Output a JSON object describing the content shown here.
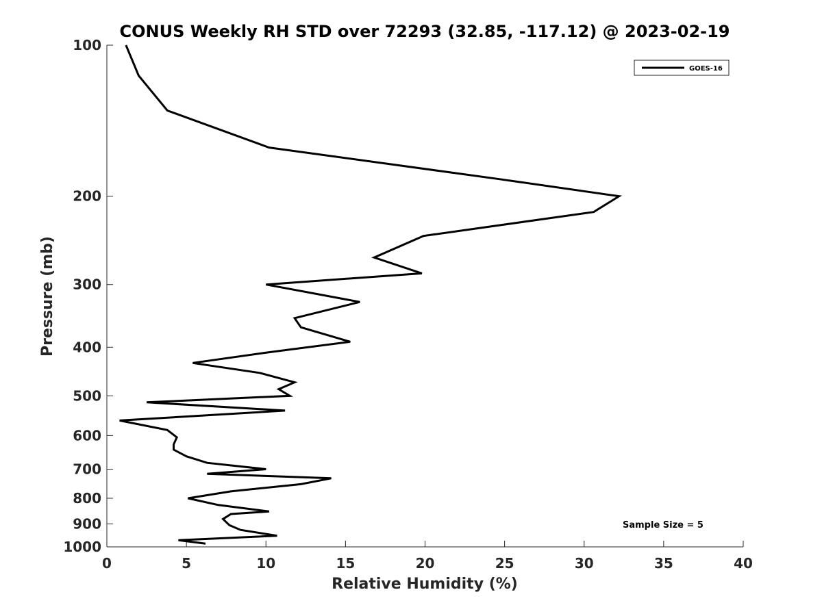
{
  "chart_data": {
    "type": "line",
    "title": "CONUS Weekly RH STD over 72293 (32.85, -117.12) @ 2023-02-19",
    "xlabel": "Relative Humidity (%)",
    "ylabel": "Pressure (mb)",
    "xlim": [
      0,
      40
    ],
    "ylim": [
      100,
      1000
    ],
    "yscale": "log",
    "y_reversed": true,
    "grid": false,
    "legend_position": "top-right",
    "x_ticks": [
      0,
      5,
      10,
      15,
      20,
      25,
      30,
      35,
      40
    ],
    "y_ticks": [
      100,
      200,
      300,
      400,
      500,
      600,
      700,
      800,
      900,
      1000
    ],
    "series": [
      {
        "name": "GOES-16",
        "color": "#000000",
        "rh": [
          1.2,
          2.0,
          3.8,
          10.2,
          24.7,
          32.2,
          30.6,
          19.9,
          16.8,
          19.8,
          10.0,
          15.9,
          11.8,
          12.2,
          15.3,
          10.0,
          5.4,
          9.6,
          11.8,
          10.8,
          11.5,
          2.5,
          11.2,
          0.8,
          3.8,
          4.4,
          4.2,
          4.2,
          5.0,
          6.3,
          10.0,
          6.3,
          14.1,
          12.2,
          7.8,
          5.1,
          7.0,
          10.2,
          7.8,
          7.3,
          7.7,
          8.4,
          10.7,
          4.5,
          6.2
        ],
        "pressure": [
          100,
          115,
          135,
          160,
          185,
          200,
          215,
          240,
          265,
          285,
          300,
          325,
          350,
          365,
          390,
          410,
          430,
          450,
          470,
          485,
          500,
          515,
          535,
          560,
          585,
          605,
          625,
          640,
          660,
          680,
          700,
          715,
          730,
          750,
          775,
          800,
          825,
          850,
          860,
          880,
          905,
          925,
          950,
          970,
          985
        ]
      }
    ],
    "annotation": "Sample Size = 5"
  }
}
